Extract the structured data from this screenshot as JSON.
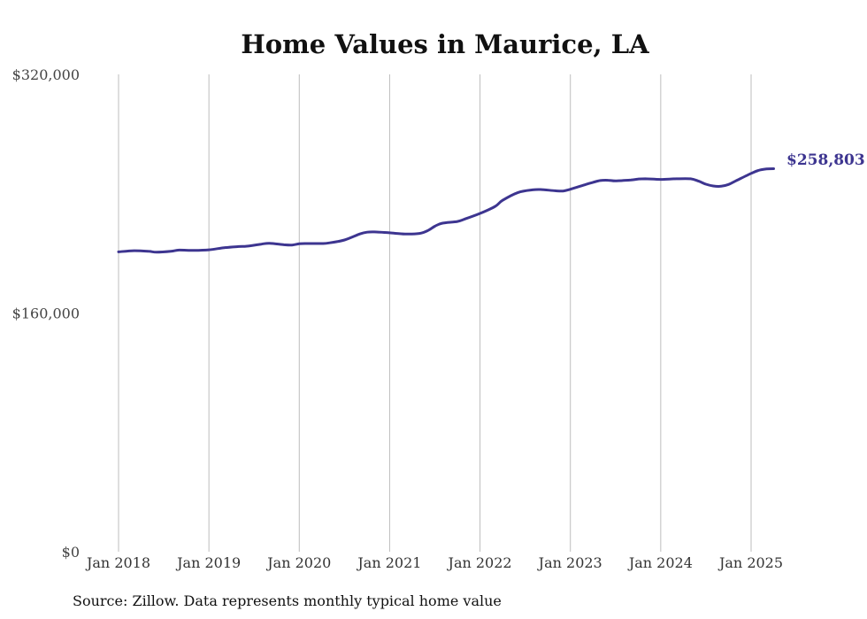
{
  "chart_data": {
    "type": "line",
    "title": "Home Values in Maurice, LA",
    "xlabel": "",
    "ylabel": "",
    "ylim": [
      0,
      320000
    ],
    "y_ticks": [
      {
        "value": 0,
        "label": "$0"
      },
      {
        "value": 160000,
        "label": "$160,000"
      },
      {
        "value": 320000,
        "label": "$320,000"
      }
    ],
    "x_ticks": [
      {
        "value": 2018,
        "label": "Jan 2018"
      },
      {
        "value": 2019,
        "label": "Jan 2019"
      },
      {
        "value": 2020,
        "label": "Jan 2020"
      },
      {
        "value": 2021,
        "label": "Jan 2021"
      },
      {
        "value": 2022,
        "label": "Jan 2022"
      },
      {
        "value": 2023,
        "label": "Jan 2023"
      },
      {
        "value": 2024,
        "label": "Jan 2024"
      },
      {
        "value": 2025,
        "label": "Jan 2025"
      }
    ],
    "xlim": [
      2018,
      2025
    ],
    "grid": {
      "vertical": true,
      "horizontal": false
    },
    "series": [
      {
        "color": "#3d3590",
        "points": [
          [
            2018.0,
            201000
          ],
          [
            2018.17,
            201800
          ],
          [
            2018.33,
            201400
          ],
          [
            2018.42,
            200800
          ],
          [
            2018.58,
            201400
          ],
          [
            2018.67,
            202200
          ],
          [
            2018.83,
            202000
          ],
          [
            2019.0,
            202400
          ],
          [
            2019.17,
            203800
          ],
          [
            2019.33,
            204600
          ],
          [
            2019.42,
            204800
          ],
          [
            2019.58,
            206200
          ],
          [
            2019.67,
            206800
          ],
          [
            2019.83,
            205800
          ],
          [
            2019.92,
            205600
          ],
          [
            2020.0,
            206400
          ],
          [
            2020.08,
            206600
          ],
          [
            2020.25,
            206600
          ],
          [
            2020.33,
            207000
          ],
          [
            2020.5,
            209000
          ],
          [
            2020.67,
            213000
          ],
          [
            2020.75,
            214200
          ],
          [
            2020.83,
            214400
          ],
          [
            2021.0,
            213800
          ],
          [
            2021.17,
            213000
          ],
          [
            2021.33,
            213400
          ],
          [
            2021.42,
            215200
          ],
          [
            2021.5,
            218200
          ],
          [
            2021.58,
            220200
          ],
          [
            2021.75,
            221400
          ],
          [
            2021.83,
            223000
          ],
          [
            2022.0,
            226800
          ],
          [
            2022.17,
            231600
          ],
          [
            2022.25,
            235600
          ],
          [
            2022.42,
            240800
          ],
          [
            2022.58,
            242600
          ],
          [
            2022.67,
            242800
          ],
          [
            2022.83,
            242000
          ],
          [
            2022.92,
            241800
          ],
          [
            2023.0,
            243000
          ],
          [
            2023.17,
            246200
          ],
          [
            2023.25,
            247600
          ],
          [
            2023.33,
            248800
          ],
          [
            2023.42,
            249000
          ],
          [
            2023.5,
            248600
          ],
          [
            2023.67,
            249200
          ],
          [
            2023.75,
            249800
          ],
          [
            2023.83,
            250000
          ],
          [
            2024.0,
            249600
          ],
          [
            2024.17,
            250000
          ],
          [
            2024.33,
            250000
          ],
          [
            2024.42,
            248400
          ],
          [
            2024.5,
            246400
          ],
          [
            2024.58,
            245200
          ],
          [
            2024.67,
            245000
          ],
          [
            2024.75,
            246200
          ],
          [
            2024.83,
            248600
          ],
          [
            2025.0,
            253600
          ],
          [
            2025.08,
            255600
          ],
          [
            2025.17,
            256600
          ],
          [
            2025.25,
            256800
          ]
        ]
      }
    ],
    "end_label": "$258,803",
    "source": "Source: Zillow. Data represents monthly typical home value"
  }
}
